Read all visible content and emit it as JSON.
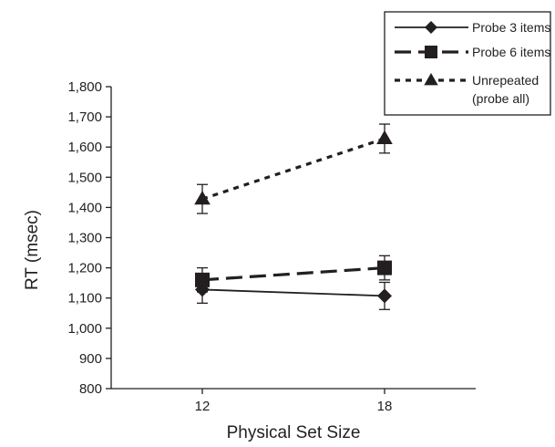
{
  "chart_data": {
    "type": "line",
    "xlabel": "Physical Set Size",
    "ylabel": "RT (msec)",
    "categories": [
      "12",
      "18"
    ],
    "ylim": [
      800,
      1800
    ],
    "yticks": [
      800,
      900,
      1000,
      1100,
      1200,
      1300,
      1400,
      1500,
      1600,
      1700,
      1800
    ],
    "ytick_labels": [
      "800",
      "900",
      "1,000",
      "1,100",
      "1,200",
      "1,300",
      "1,400",
      "1,500",
      "1,600",
      "1,700",
      "1,800"
    ],
    "grid": false,
    "legend_position": "top-right",
    "series": [
      {
        "name": "Probe 3 items",
        "values": [
          1128,
          1107
        ],
        "errors": [
          45,
          45
        ],
        "marker": "diamond",
        "line": "solid"
      },
      {
        "name": "Probe 6 items",
        "values": [
          1160,
          1200
        ],
        "errors": [
          40,
          40
        ],
        "marker": "square",
        "line": "dashed"
      },
      {
        "name_lines": [
          "Unrepeated",
          "(probe all)"
        ],
        "values": [
          1428,
          1628
        ],
        "errors": [
          48,
          48
        ],
        "marker": "triangle",
        "line": "dotted"
      }
    ],
    "color": "#231f20"
  }
}
